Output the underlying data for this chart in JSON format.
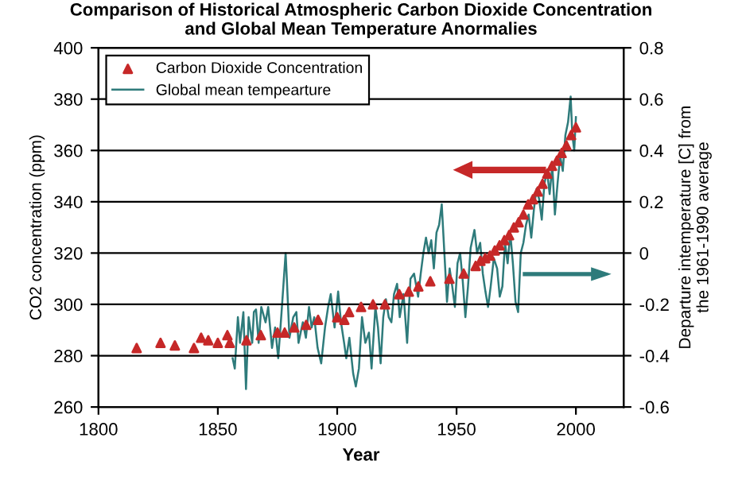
{
  "chart_data": {
    "type": "scatter",
    "title": "Comparison of Historical Atmospheric Carbon Dioxide Concentration\nand Global Mean Temperature Anormalies",
    "xlabel": "Year",
    "ylabel": "CO2 concentration (ppm)",
    "y2label": "Departure intemperature [C] from\nthe 1961-1990 average",
    "xlim": [
      1800,
      2020
    ],
    "xticks": [
      1800,
      1850,
      1900,
      1950,
      2000
    ],
    "ylim": [
      260,
      400
    ],
    "yticks": [
      260,
      280,
      300,
      320,
      340,
      360,
      380,
      400
    ],
    "y2lim": [
      -0.6,
      0.8
    ],
    "y2ticks": [
      -0.6,
      -0.4,
      -0.2,
      0,
      0.2,
      0.4,
      0.6,
      0.8
    ],
    "grid": "y",
    "legend": "top left",
    "series": [
      {
        "name": "Carbon Dioxide Concentration",
        "marker": "triangle",
        "color": "#c62828",
        "x": [
          1816,
          1826,
          1832,
          1840,
          1843,
          1846,
          1850,
          1854,
          1855,
          1862,
          1868,
          1875,
          1878,
          1882,
          1887,
          1892,
          1900,
          1903,
          1905,
          1910,
          1915,
          1920,
          1926,
          1930,
          1934,
          1939,
          1947,
          1953,
          1958,
          1960,
          1962,
          1964,
          1966,
          1968,
          1970,
          1972,
          1974,
          1976,
          1978,
          1980,
          1982,
          1984,
          1986,
          1988,
          1990,
          1992,
          1994,
          1996,
          1998,
          2000
        ],
        "values": [
          283,
          285,
          284,
          283,
          287,
          286,
          285,
          288,
          285,
          286,
          288,
          289,
          289,
          291,
          292,
          294,
          295,
          294,
          297,
          299,
          300,
          300,
          304,
          305,
          307,
          309,
          310,
          312,
          315,
          317,
          318,
          319,
          321,
          323,
          325,
          327,
          330,
          332,
          335,
          339,
          341,
          344,
          347,
          351,
          354,
          356,
          359,
          362,
          366,
          369
        ]
      },
      {
        "name": "Global mean tempearture",
        "type": "line",
        "axis": "y2",
        "marker": "none",
        "color": "#2e7b7b",
        "x": [
          1856.2,
          1857.1,
          1858.4,
          1859.3,
          1860.7,
          1861.8,
          1862.9,
          1864.4,
          1865.1,
          1866,
          1867.1,
          1868.2,
          1870,
          1871.1,
          1872.7,
          1874,
          1875.3,
          1876.7,
          1878.4,
          1878.9,
          1880,
          1881.6,
          1882.9,
          1883.8,
          1885.6,
          1886.9,
          1888.2,
          1889.3,
          1890.4,
          1891.8,
          1893.3,
          1894.9,
          1896.2,
          1897.3,
          1898.9,
          1900.4,
          1901.6,
          1902.9,
          1903.8,
          1905.1,
          1906.7,
          1907.8,
          1909.1,
          1910.4,
          1911.8,
          1913.3,
          1914.4,
          1916,
          1917.1,
          1918.2,
          1919.3,
          1920.4,
          1921.6,
          1922.7,
          1923.8,
          1925.1,
          1926.2,
          1927.8,
          1929.3,
          1930.7,
          1932.2,
          1933.9,
          1935,
          1936.1,
          1937.2,
          1938.3,
          1939.4,
          1940.5,
          1941.6,
          1942.7,
          1943.8,
          1944.9,
          1946,
          1947.1,
          1948.2,
          1949.3,
          1950.4,
          1951.5,
          1952.6,
          1953.7,
          1954.8,
          1955.9,
          1957.5,
          1958.6,
          1959.9,
          1961,
          1962.1,
          1963.2,
          1964.3,
          1965.6,
          1967,
          1968.1,
          1969.2,
          1970.3,
          1971.4,
          1972.5,
          1973.6,
          1974.7,
          1975.8,
          1976.9,
          1978,
          1979.1,
          1980.2,
          1981.3,
          1982.4,
          1983.5,
          1984.6,
          1985.7,
          1986.8,
          1987.9,
          1989,
          1990.1,
          1991.2,
          1992.3,
          1993.4,
          1994.5,
          1995.6,
          1996.7,
          1997.8,
          1998.5,
          1999.3,
          2000
        ],
        "values": [
          -0.41,
          -0.45,
          -0.25,
          -0.35,
          -0.23,
          -0.53,
          -0.25,
          -0.35,
          -0.23,
          -0.22,
          -0.35,
          -0.21,
          -0.27,
          -0.21,
          -0.37,
          -0.29,
          -0.41,
          -0.23,
          0,
          -0.1,
          -0.33,
          -0.25,
          -0.23,
          -0.35,
          -0.27,
          -0.33,
          -0.21,
          -0.29,
          -0.25,
          -0.37,
          -0.43,
          -0.29,
          -0.21,
          -0.16,
          -0.29,
          -0.15,
          -0.27,
          -0.35,
          -0.41,
          -0.33,
          -0.47,
          -0.52,
          -0.45,
          -0.25,
          -0.35,
          -0.31,
          -0.45,
          -0.21,
          -0.29,
          -0.43,
          -0.25,
          -0.18,
          -0.25,
          -0.27,
          -0.16,
          -0.12,
          -0.25,
          -0.16,
          -0.35,
          -0.1,
          -0.08,
          -0.17,
          -0.08,
          0,
          0.06,
          0,
          0.05,
          -0.06,
          0.08,
          0.11,
          0.19,
          0,
          -0.19,
          -0.06,
          -0.13,
          -0.21,
          -0.04,
          0,
          -0.11,
          -0.25,
          -0.13,
          0.02,
          0.09,
          0,
          0.04,
          -0.08,
          -0.15,
          -0.21,
          -0.13,
          -0.02,
          -0.06,
          -0.17,
          -0.13,
          0.04,
          -0.04,
          0.08,
          -0.04,
          -0.19,
          -0.23,
          0,
          0.04,
          0.11,
          0.15,
          0.06,
          0.17,
          0.25,
          0.21,
          0.13,
          0.27,
          0.32,
          0.23,
          0.34,
          0.15,
          0.27,
          0.38,
          0.32,
          0.46,
          0.51,
          0.61,
          0.46,
          0.4,
          0.53
        ]
      }
    ]
  }
}
